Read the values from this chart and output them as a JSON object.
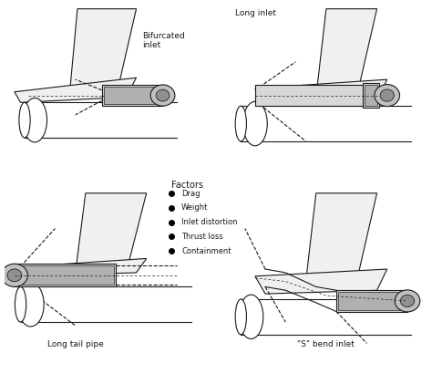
{
  "background_color": "#ffffff",
  "panel_labels": [
    "Bifurcated\ninlet",
    "Long inlet",
    "Long tail pipe",
    "\"S\" bend inlet"
  ],
  "legend_title": "Factors",
  "legend_items": [
    "Drag",
    "Weight",
    "Inlet distortion",
    "Thrust loss",
    "Containment"
  ],
  "line_color": "#1a1a1a",
  "font_size": 6.5
}
